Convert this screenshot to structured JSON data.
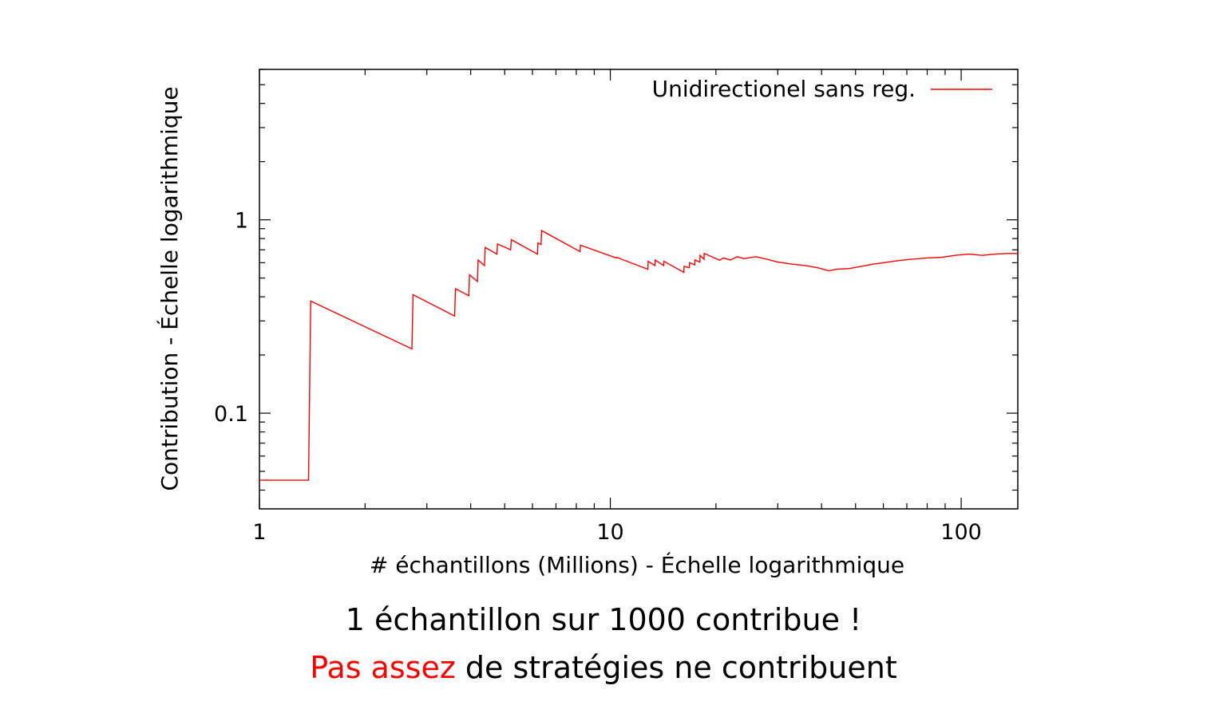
{
  "chart_data": {
    "type": "line",
    "xscale": "log",
    "yscale": "log",
    "xlim": [
      1,
      145
    ],
    "ylim": [
      0.032,
      6.0
    ],
    "xlabel": "# échantillons (Millions) - Échelle logarithmique",
    "ylabel": "Contribution - Échelle logarithmique",
    "x_ticks": [
      {
        "value": 1,
        "label": "1"
      },
      {
        "value": 10,
        "label": "10"
      },
      {
        "value": 100,
        "label": "100"
      }
    ],
    "y_ticks": [
      {
        "value": 0.1,
        "label": "0.1"
      },
      {
        "value": 1,
        "label": "1"
      }
    ],
    "grid": false,
    "legend_position": "top-right",
    "series": [
      {
        "name": "Unidirectionel sans reg.",
        "color": "#ff0000",
        "points": [
          [
            1.0,
            0.045
          ],
          [
            1.38,
            0.045
          ],
          [
            1.38,
            0.045
          ],
          [
            1.4,
            0.38
          ],
          [
            2.72,
            0.215
          ],
          [
            2.74,
            0.41
          ],
          [
            3.6,
            0.318
          ],
          [
            3.62,
            0.44
          ],
          [
            3.95,
            0.405
          ],
          [
            3.97,
            0.52
          ],
          [
            4.18,
            0.48
          ],
          [
            4.2,
            0.62
          ],
          [
            4.38,
            0.58
          ],
          [
            4.4,
            0.72
          ],
          [
            4.75,
            0.665
          ],
          [
            4.77,
            0.75
          ],
          [
            5.2,
            0.7
          ],
          [
            5.22,
            0.79
          ],
          [
            6.2,
            0.665
          ],
          [
            6.22,
            0.76
          ],
          [
            6.35,
            0.745
          ],
          [
            6.37,
            0.88
          ],
          [
            8.2,
            0.685
          ],
          [
            8.22,
            0.74
          ],
          [
            10.4,
            0.635
          ],
          [
            10.42,
            0.64
          ],
          [
            12.8,
            0.555
          ],
          [
            12.82,
            0.61
          ],
          [
            13.4,
            0.58
          ],
          [
            13.42,
            0.62
          ],
          [
            14.2,
            0.58
          ],
          [
            14.22,
            0.61
          ],
          [
            16.2,
            0.535
          ],
          [
            16.22,
            0.575
          ],
          [
            16.8,
            0.565
          ],
          [
            16.82,
            0.6
          ],
          [
            17.4,
            0.585
          ],
          [
            17.42,
            0.62
          ],
          [
            18.0,
            0.605
          ],
          [
            18.02,
            0.655
          ],
          [
            18.5,
            0.625
          ],
          [
            18.52,
            0.67
          ],
          [
            20.5,
            0.618
          ],
          [
            21.0,
            0.635
          ],
          [
            22.0,
            0.62
          ],
          [
            23.0,
            0.645
          ],
          [
            24.0,
            0.63
          ],
          [
            26.0,
            0.645
          ],
          [
            28.0,
            0.625
          ],
          [
            30.0,
            0.605
          ],
          [
            33.0,
            0.59
          ],
          [
            36.0,
            0.58
          ],
          [
            39.0,
            0.565
          ],
          [
            42.0,
            0.545
          ],
          [
            44.0,
            0.555
          ],
          [
            48.0,
            0.56
          ],
          [
            52.0,
            0.575
          ],
          [
            56.0,
            0.59
          ],
          [
            60.0,
            0.6
          ],
          [
            66.0,
            0.615
          ],
          [
            72.0,
            0.625
          ],
          [
            80.0,
            0.635
          ],
          [
            88.0,
            0.64
          ],
          [
            96.0,
            0.655
          ],
          [
            105.0,
            0.665
          ],
          [
            115.0,
            0.655
          ],
          [
            125.0,
            0.665
          ],
          [
            135.0,
            0.67
          ],
          [
            145.0,
            0.67
          ]
        ]
      }
    ]
  },
  "caption": {
    "line1": "1 échantillon sur 1000 contribue !",
    "line2_highlight": "Pas assez",
    "line2_rest": " de stratégies ne contribuent",
    "highlight_color": "#ff0000"
  }
}
